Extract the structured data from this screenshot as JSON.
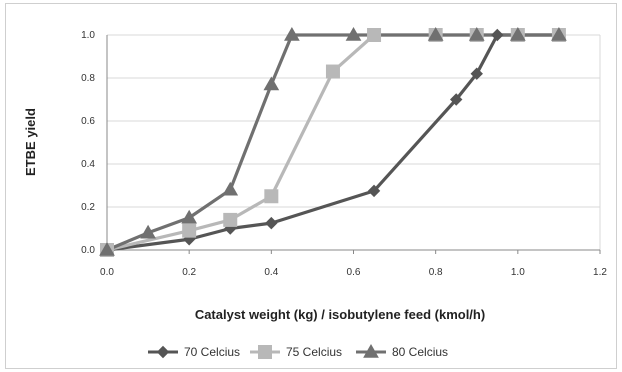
{
  "chart_data": {
    "type": "line",
    "title": "",
    "xlabel": "Catalyst weight (kg) / isobutylene feed (kmol/h)",
    "ylabel": "ETBE yield",
    "xlim": [
      0.0,
      1.2
    ],
    "ylim": [
      0.0,
      1.0
    ],
    "x_ticks": [
      "0.0",
      "0.2",
      "0.4",
      "0.6",
      "0.8",
      "1.0",
      "1.2"
    ],
    "y_ticks": [
      "0.0",
      "0.2",
      "0.4",
      "0.6",
      "0.8",
      "1.0"
    ],
    "grid": "horizontal",
    "legend_position": "bottom",
    "series": [
      {
        "name": "70 Celcius",
        "marker": "diamond",
        "color": "#555555",
        "x": [
          0.0,
          0.2,
          0.3,
          0.4,
          0.65,
          0.85,
          0.9,
          0.95,
          1.0,
          1.1
        ],
        "y": [
          0.0,
          0.05,
          0.1,
          0.125,
          0.275,
          0.7,
          0.82,
          1.0,
          1.0,
          1.0
        ]
      },
      {
        "name": "75 Celcius",
        "marker": "square",
        "color": "#b8b8b8",
        "x": [
          0.0,
          0.2,
          0.3,
          0.4,
          0.55,
          0.65,
          0.8,
          0.9,
          1.0,
          1.1
        ],
        "y": [
          0.0,
          0.09,
          0.14,
          0.25,
          0.83,
          1.0,
          1.0,
          1.0,
          1.0,
          1.0
        ]
      },
      {
        "name": "80 Celcius",
        "marker": "triangle",
        "color": "#707070",
        "x": [
          0.0,
          0.1,
          0.2,
          0.3,
          0.4,
          0.45,
          0.6,
          0.8,
          0.9,
          1.0,
          1.1
        ],
        "y": [
          0.0,
          0.08,
          0.15,
          0.28,
          0.77,
          1.0,
          1.0,
          1.0,
          1.0,
          1.0,
          1.0
        ]
      }
    ]
  }
}
